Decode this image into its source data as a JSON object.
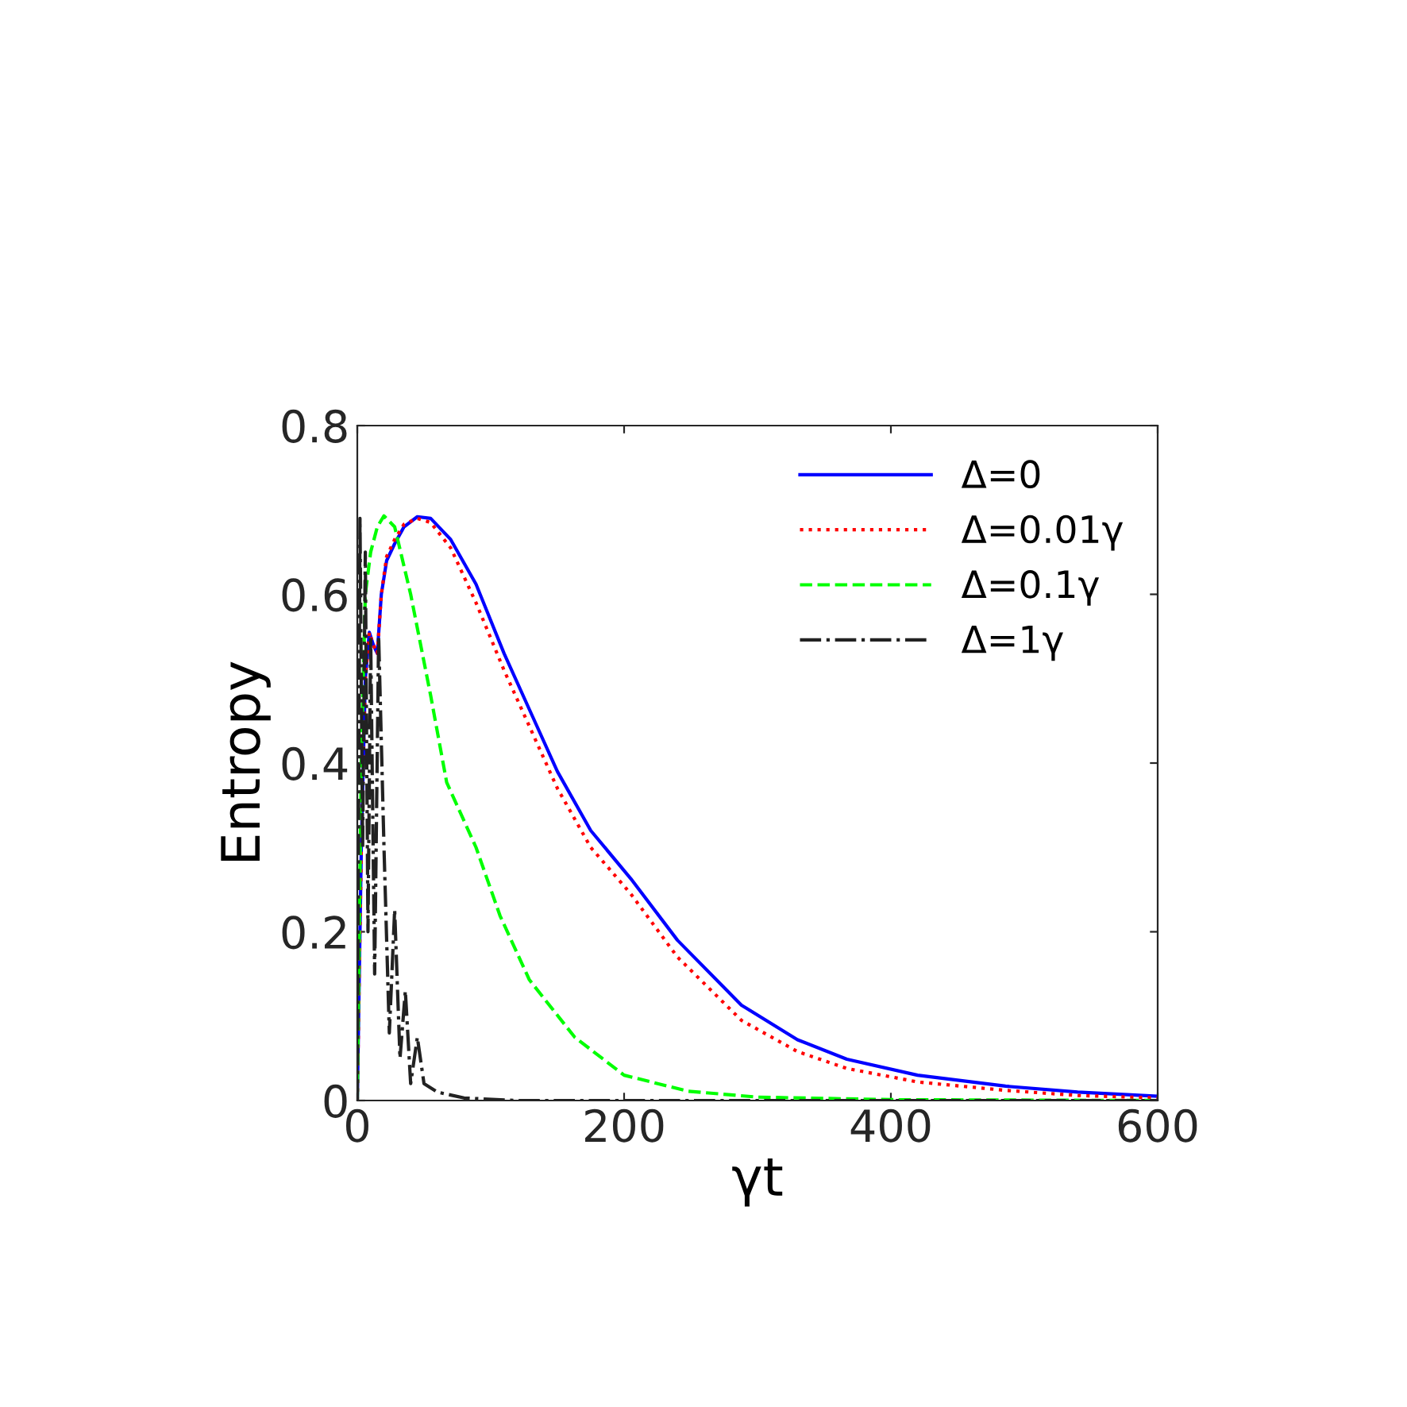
{
  "chart_data": {
    "type": "line",
    "xlabel": "γt",
    "ylabel": "Entropy",
    "xlim": [
      0,
      600
    ],
    "ylim": [
      0,
      0.8
    ],
    "xticks": [
      0,
      200,
      400,
      600
    ],
    "yticks": [
      0,
      0.2,
      0.4,
      0.6,
      0.8
    ],
    "grid": false,
    "legend": "top right",
    "series": [
      {
        "name": "Δ=0",
        "color": "#0000ff",
        "line_style": "solid",
        "x": [
          0,
          3,
          6,
          9,
          12,
          15,
          18,
          22,
          28,
          35,
          45,
          55,
          70,
          89,
          110,
          130,
          150,
          175,
          205,
          240,
          288,
          330,
          367,
          420,
          486,
          540,
          600
        ],
        "values": [
          0,
          0.3,
          0.5,
          0.555,
          0.54,
          0.53,
          0.6,
          0.64,
          0.66,
          0.68,
          0.692,
          0.69,
          0.665,
          0.612,
          0.53,
          0.46,
          0.39,
          0.32,
          0.263,
          0.19,
          0.113,
          0.072,
          0.049,
          0.03,
          0.017,
          0.01,
          0.005
        ]
      },
      {
        "name": "Δ=0.01γ",
        "color": "#ff0000",
        "line_style": "dotted",
        "x": [
          0,
          3,
          6,
          9,
          12,
          15,
          18,
          22,
          28,
          35,
          45,
          55,
          70,
          89,
          110,
          130,
          150,
          175,
          205,
          240,
          288,
          330,
          367,
          420,
          486,
          540,
          600
        ],
        "values": [
          0,
          0.3,
          0.5,
          0.555,
          0.54,
          0.53,
          0.6,
          0.645,
          0.665,
          0.683,
          0.69,
          0.685,
          0.655,
          0.59,
          0.51,
          0.44,
          0.37,
          0.3,
          0.245,
          0.17,
          0.095,
          0.058,
          0.038,
          0.022,
          0.012,
          0.006,
          0.003
        ]
      },
      {
        "name": "Δ=0.1γ",
        "color": "#00ff00",
        "line_style": "dashed",
        "x": [
          0,
          3,
          6,
          10,
          15,
          20,
          28,
          40,
          55,
          67,
          89,
          107,
          129,
          163,
          200,
          248,
          300,
          400,
          600
        ],
        "values": [
          0,
          0.4,
          0.6,
          0.65,
          0.68,
          0.693,
          0.68,
          0.6,
          0.48,
          0.377,
          0.3,
          0.219,
          0.143,
          0.075,
          0.03,
          0.011,
          0.004,
          0.001,
          0
        ]
      },
      {
        "name": "Δ=1γ",
        "color": "#222222",
        "line_style": "dashdot",
        "x": [
          0,
          2,
          4,
          6,
          8,
          10,
          13,
          16,
          20,
          24,
          28,
          32,
          36,
          40,
          45,
          50,
          60,
          80,
          120,
          600
        ],
        "values": [
          0,
          0.69,
          0.3,
          0.65,
          0.2,
          0.55,
          0.15,
          0.55,
          0.3,
          0.08,
          0.226,
          0.05,
          0.13,
          0.02,
          0.075,
          0.02,
          0.01,
          0.003,
          0,
          0
        ]
      }
    ]
  }
}
